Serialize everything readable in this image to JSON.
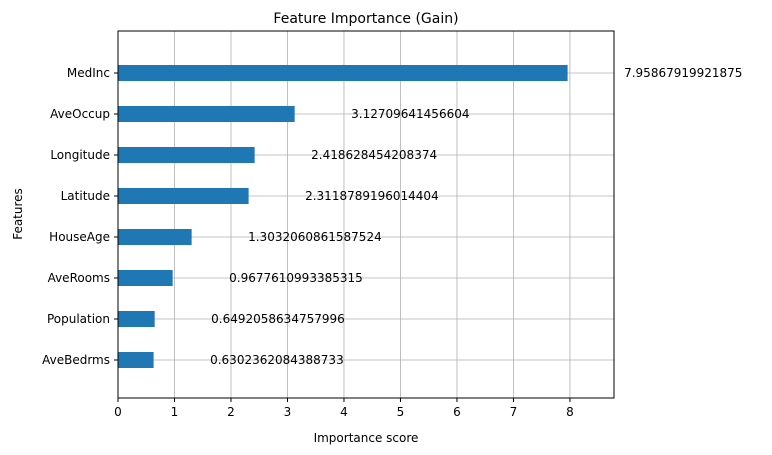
{
  "chart_data": {
    "type": "bar",
    "orientation": "horizontal",
    "title": "Feature Importance (Gain)",
    "xlabel": "Importance score",
    "ylabel": "Features",
    "categories": [
      "MedInc",
      "AveOccup",
      "Longitude",
      "Latitude",
      "HouseAge",
      "AveRooms",
      "Population",
      "AveBedrms"
    ],
    "values": [
      7.95867919921875,
      3.12709641456604,
      2.418628454208374,
      2.3118789196014404,
      1.3032060861587524,
      0.9677610993385315,
      0.6492058634757996,
      0.6302362084388733
    ],
    "value_labels": [
      "7.95867919921875",
      "3.12709641456604",
      "2.418628454208374",
      "2.3118789196014404",
      "1.3032060861587524",
      "0.9677610993385315",
      "0.6492058634757996",
      "0.6302362084388733"
    ],
    "xticks": [
      0,
      1,
      2,
      3,
      4,
      5,
      6,
      7,
      8
    ],
    "xlim": [
      0,
      8.78
    ],
    "grid": true,
    "bar_color": "#1f77b4"
  }
}
